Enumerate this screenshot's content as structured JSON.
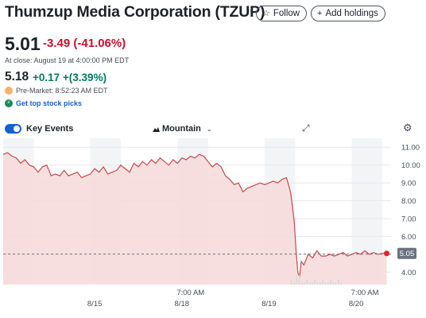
{
  "header": {
    "title": "Thumzup Media Corporation (TZUP)",
    "follow_label": "Follow",
    "add_holdings_label": "Add holdings"
  },
  "quote": {
    "price": "5.01",
    "change": "-3.49 (-41.06%)",
    "close_note": "At close: August 19 at 4:00:00 PM EDT",
    "premarket_price": "5.18",
    "premarket_change": "+0.17 +(3.39%)",
    "premarket_note": "Pre-Market: 8:52:23 AM EDT",
    "top_picks_label": "Get top stock picks"
  },
  "controls": {
    "key_events_label": "Key Events",
    "key_events_on": true,
    "chart_style_label": "Mountain"
  },
  "icons": {
    "follow": "star-icon",
    "add": "plus-icon",
    "expand": "expand-icon",
    "settings": "gear-icon"
  },
  "colors": {
    "down": "#c8102e",
    "up": "#007b5f",
    "link": "#1560d4",
    "area_fill": "#f7d9d9",
    "line": "#c44a4a"
  },
  "chart_data": {
    "type": "area",
    "y_ticks": [
      "11.00",
      "10.00",
      "9.00",
      "8.00",
      "7.00",
      "6.00",
      "5.00",
      "4.00"
    ],
    "ylim": [
      3.3,
      11.5
    ],
    "x_labels": [
      {
        "label": "8/15",
        "x": 1.05
      },
      {
        "label": "8/18",
        "x": 2.05
      },
      {
        "label": "8/19",
        "x": 3.05
      },
      {
        "label": "8/20",
        "x": 4.05
      }
    ],
    "session_labels": [
      {
        "label": "7:00 AM",
        "x": 2.15
      },
      {
        "label": "7:00 AM",
        "x": 4.15
      }
    ],
    "reference_value": 5.01,
    "current_value": "5.05",
    "series": [
      {
        "x": [
          0.0,
          0.05,
          0.1,
          0.15,
          0.2,
          0.25,
          0.3,
          0.35,
          0.4,
          0.45,
          0.5,
          0.55,
          0.6,
          0.65,
          0.7,
          0.75,
          0.8,
          0.85,
          0.9,
          0.95,
          1.0,
          1.05,
          1.1,
          1.15,
          1.2,
          1.25,
          1.3,
          1.35,
          1.4,
          1.45,
          1.5,
          1.55,
          1.6,
          1.65,
          1.7,
          1.75,
          1.8,
          1.85,
          1.9,
          1.95,
          2.0,
          2.05,
          2.1,
          2.15,
          2.2,
          2.25,
          2.3,
          2.35,
          2.4,
          2.45,
          2.5,
          2.55,
          2.6,
          2.65,
          2.7,
          2.75,
          2.8,
          2.85,
          2.9,
          2.95,
          3.0,
          3.05,
          3.1,
          3.15,
          3.2,
          3.25,
          3.28,
          3.3,
          3.32,
          3.34,
          3.36,
          3.38,
          3.4,
          3.42,
          3.45,
          3.5,
          3.55,
          3.6,
          3.65,
          3.7,
          3.75,
          3.8,
          3.85,
          3.9,
          3.95,
          4.0,
          4.05,
          4.1,
          4.15,
          4.2,
          4.25,
          4.3,
          4.35,
          4.4
        ],
        "y": [
          10.6,
          10.7,
          10.5,
          10.4,
          10.1,
          10.3,
          10.0,
          9.9,
          9.6,
          9.9,
          10.0,
          9.4,
          9.5,
          9.4,
          9.7,
          9.4,
          9.5,
          9.6,
          9.3,
          9.4,
          9.5,
          9.8,
          9.6,
          9.9,
          9.5,
          9.6,
          9.7,
          10.0,
          9.8,
          9.6,
          10.1,
          9.9,
          10.2,
          10.0,
          10.3,
          10.1,
          10.4,
          10.2,
          10.0,
          10.3,
          10.1,
          10.4,
          10.3,
          10.5,
          10.4,
          10.6,
          10.5,
          10.2,
          9.9,
          10.1,
          9.9,
          9.4,
          9.2,
          8.9,
          9.0,
          8.5,
          8.7,
          8.8,
          8.9,
          9.0,
          8.9,
          9.0,
          9.1,
          9.0,
          9.2,
          9.3,
          8.8,
          8.4,
          7.6,
          6.8,
          5.2,
          4.0,
          3.7,
          4.6,
          4.4,
          5.0,
          4.8,
          5.2,
          4.9,
          4.9,
          5.0,
          4.9,
          5.0,
          5.1,
          4.9,
          5.0,
          5.1,
          5.0,
          5.2,
          5.0,
          5.1,
          5.0,
          5.05,
          5.05
        ]
      }
    ]
  }
}
